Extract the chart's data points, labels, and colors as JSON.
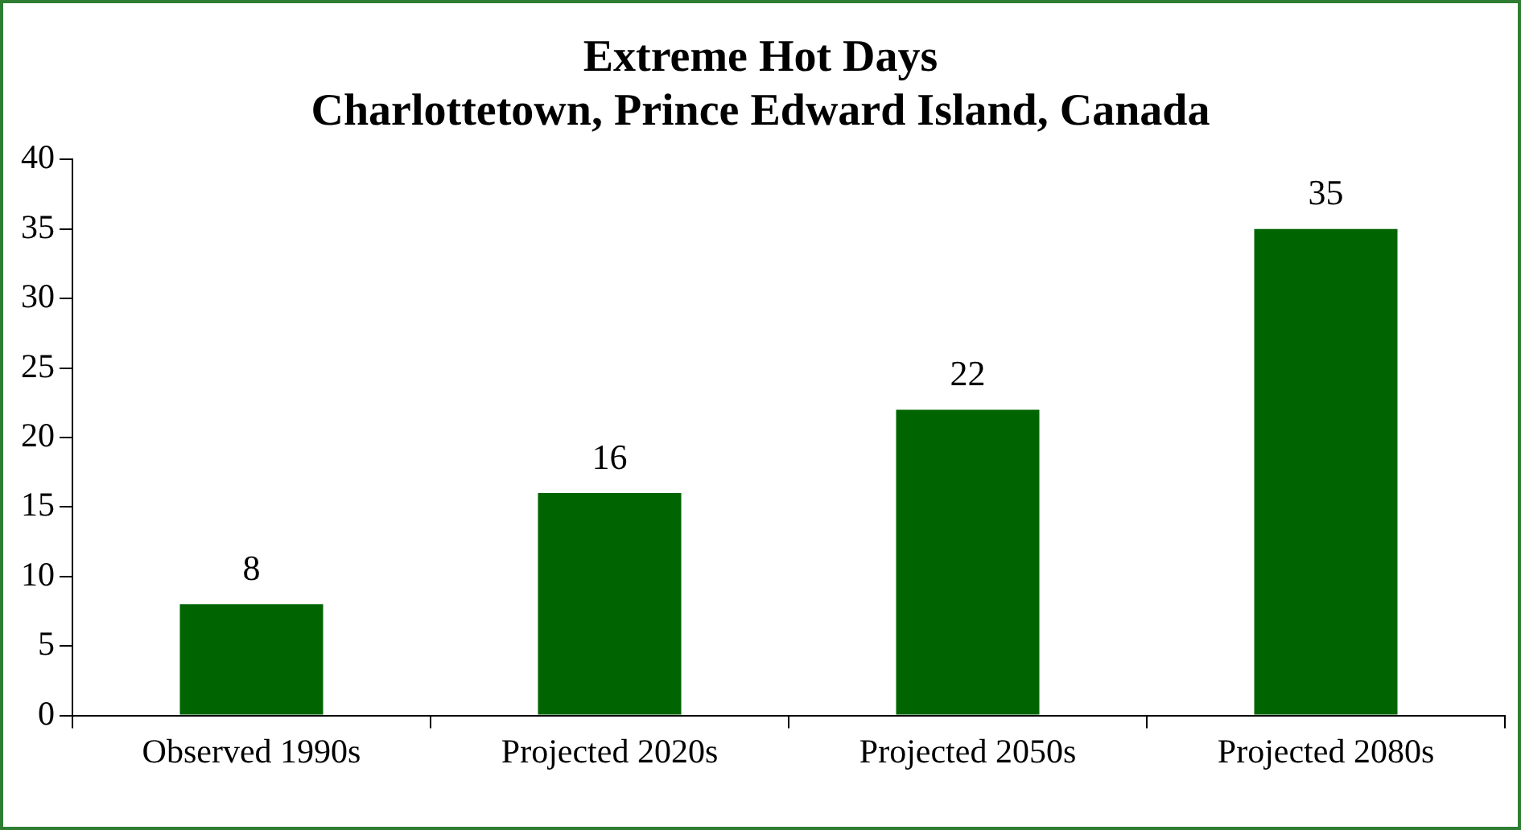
{
  "chart_data": {
    "type": "bar",
    "title": "Extreme Hot Days",
    "subtitle": "Charlottetown, Prince Edward Island, Canada",
    "categories": [
      "Observed 1990s",
      "Projected 2020s",
      "Projected 2050s",
      "Projected 2080s"
    ],
    "values": [
      8,
      16,
      22,
      35
    ],
    "color": "#006400",
    "ylim": [
      0,
      40
    ],
    "yticks": [
      0,
      5,
      10,
      15,
      20,
      25,
      30,
      35,
      40
    ],
    "grid": false,
    "legend": false,
    "data_labels": true
  }
}
